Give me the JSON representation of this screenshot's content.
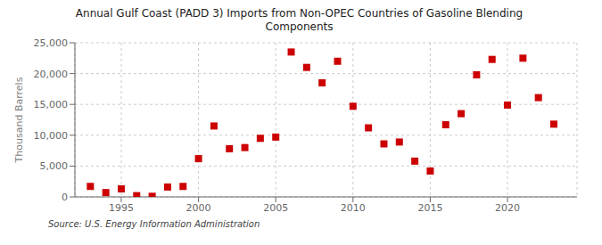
{
  "chart_data": {
    "type": "scatter",
    "title": "Annual Gulf Coast (PADD 3) Imports from Non-OPEC Countries of Gasoline Blending\nComponents",
    "y_label": "Thousand Barrels",
    "annotations": [
      "Source: U.S. Energy Information Administration"
    ],
    "x": [
      1993,
      1994,
      1995,
      1996,
      1997,
      1998,
      1999,
      2000,
      2001,
      2002,
      2003,
      2004,
      2005,
      2006,
      2007,
      2008,
      2009,
      2010,
      2011,
      2012,
      2013,
      2014,
      2015,
      2016,
      2017,
      2018,
      2019,
      2020,
      2021,
      2022,
      2023
    ],
    "values": [
      1700,
      700,
      1300,
      200,
      100,
      1600,
      1700,
      6200,
      11500,
      7800,
      8000,
      9500,
      9700,
      23500,
      21000,
      18500,
      22000,
      14700,
      11200,
      8600,
      8900,
      5800,
      4200,
      11700,
      13500,
      19800,
      22300,
      14900,
      22500,
      16100,
      11800
    ],
    "color": "#cc0000",
    "marker": "square",
    "xlim": [
      1992,
      2024.5
    ],
    "ylim": [
      0,
      25000
    ],
    "xticks": [
      1995,
      2000,
      2005,
      2010,
      2015,
      2020
    ],
    "yticks": [
      0,
      {
        "value": 5000,
        "label": "5,000"
      },
      {
        "value": 10000,
        "label": "10,000"
      },
      {
        "value": 15000,
        "label": "15,000"
      },
      {
        "value": 20000,
        "label": "20,000"
      },
      {
        "value": 25000,
        "label": "25,000"
      }
    ],
    "grid": true
  }
}
